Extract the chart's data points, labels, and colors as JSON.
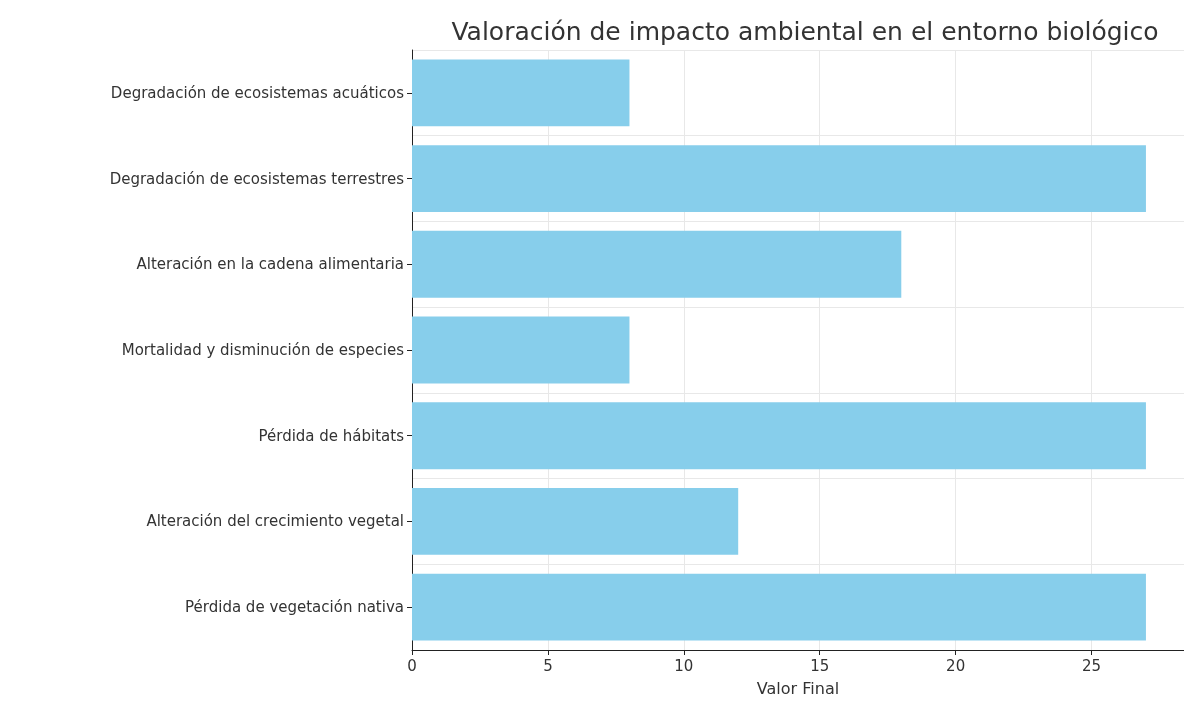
{
  "chart_data": {
    "type": "bar",
    "orientation": "horizontal",
    "title": "Valoración de impacto ambiental en el entorno biológico",
    "xlabel": "Valor Final",
    "categories": [
      "Degradación de ecosistemas acuáticos",
      "Degradación de ecosistemas terrestres",
      "Alteración en la cadena alimentaria",
      "Mortalidad y disminución de especies",
      "Pérdida de hábitats",
      "Alteración del crecimiento vegetal",
      "Pérdida de vegetación nativa"
    ],
    "values": [
      8,
      27,
      18,
      8,
      27,
      12,
      27
    ],
    "color": "#87ceeb",
    "xlim": [
      0,
      28.4
    ],
    "xticks": [
      0,
      5,
      10,
      15,
      20,
      25
    ],
    "grid": true
  }
}
